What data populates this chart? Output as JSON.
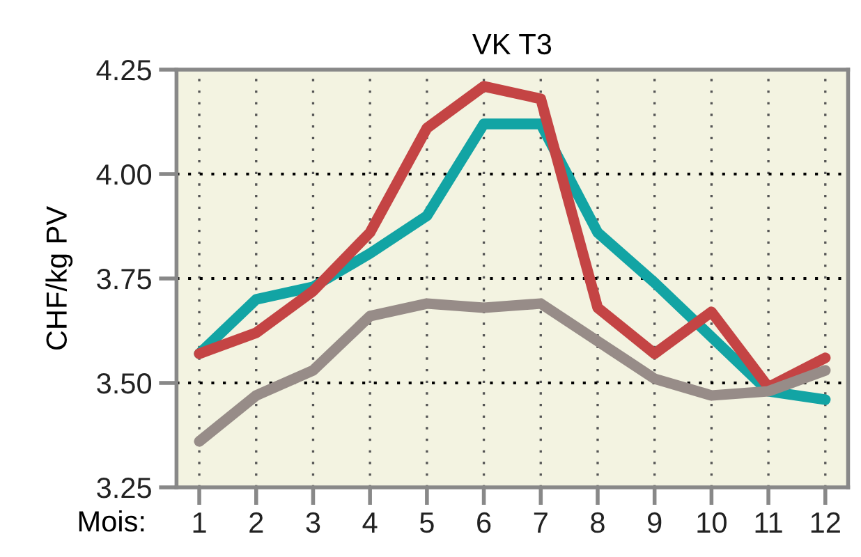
{
  "chart_data": {
    "type": "line",
    "title": "VK T3",
    "xlabel": "Mois:",
    "ylabel": "CHF/kg PV",
    "categories": [
      "1",
      "2",
      "3",
      "4",
      "5",
      "6",
      "7",
      "8",
      "9",
      "10",
      "11",
      "12"
    ],
    "series": [
      {
        "color": "#12a4a4",
        "values": [
          3.57,
          3.7,
          3.73,
          3.81,
          3.9,
          4.12,
          4.12,
          3.86,
          3.74,
          3.61,
          3.48,
          3.46
        ]
      },
      {
        "color": "#c44444",
        "values": [
          3.57,
          3.62,
          3.72,
          3.86,
          4.11,
          4.21,
          4.18,
          3.68,
          3.57,
          3.67,
          3.49,
          3.56
        ]
      },
      {
        "color": "#978c88",
        "values": [
          3.36,
          3.47,
          3.53,
          3.66,
          3.69,
          3.68,
          3.69,
          3.6,
          3.51,
          3.47,
          3.48,
          3.53
        ]
      }
    ],
    "ylim": [
      3.25,
      4.25
    ],
    "yticks": [
      {
        "value": 3.25,
        "label": "3.25"
      },
      {
        "value": 3.5,
        "label": "3.50"
      },
      {
        "value": 3.75,
        "label": "3.75"
      },
      {
        "value": 4.0,
        "label": "4.00"
      },
      {
        "value": 4.25,
        "label": "4.25"
      }
    ],
    "grid": true,
    "marker": "none",
    "line_style": "solid"
  }
}
